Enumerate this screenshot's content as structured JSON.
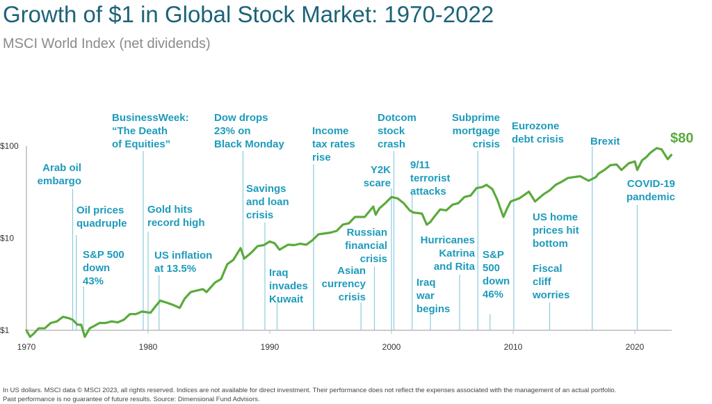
{
  "title": "Growth of $1 in Global Stock Market: 1970-2022",
  "subtitle": "MSCI World Index (net dividends)",
  "footer": {
    "line1": "In US dollars. MSCI data © MSCI 2023, all rights reserved. Indices are not available for direct investment. Their performance does not reflect the expenses associated with the management of an actual portfolio.",
    "line2": "Past performance is no guarantee of future results. Source: Dimensional Fund Advisors."
  },
  "chart_data": {
    "type": "line",
    "title": "Growth of $1 in Global Stock Market: 1970-2022",
    "yscale": "log",
    "xlim": [
      1970,
      2023
    ],
    "ylim": [
      1,
      100
    ],
    "x_ticks": [
      "1970",
      "1980",
      "1990",
      "2000",
      "2010",
      "2020"
    ],
    "y_ticks": [
      "$1",
      "$10",
      "$100"
    ],
    "grid": false,
    "line_color": "#5aaa3c",
    "annotation_color": "#1d9bbb",
    "end_value_label": "$80",
    "series": [
      {
        "x": [
          1970,
          1970.3,
          1970.6,
          1971,
          1971.5,
          1972,
          1972.5,
          1973,
          1973.5,
          1973.8,
          1974.2,
          1974.5,
          1974.8,
          1975.2,
          1975.6,
          1976,
          1976.5,
          1977,
          1977.5,
          1978,
          1978.5,
          1979,
          1979.5,
          1980.2,
          1980.5,
          1981,
          1981.5,
          1982,
          1982.6,
          1983,
          1983.5,
          1984,
          1984.5,
          1984.8,
          1985.5,
          1986,
          1986.5,
          1987,
          1987.6,
          1987.9,
          1988.5,
          1989,
          1989.5,
          1990,
          1990.4,
          1990.8,
          1991.5,
          1992,
          1992.5,
          1993,
          1993.5,
          1994,
          1995,
          1995.5,
          1996,
          1996.5,
          1997,
          1997.8,
          1998.5,
          1998.7,
          1999,
          1999.5,
          2000,
          2000.5,
          2001,
          2001.5,
          2001.8,
          2002.5,
          2002.9,
          2003.2,
          2003.5,
          2004,
          2004.5,
          2005,
          2005.5,
          2006,
          2006.5,
          2007,
          2007.5,
          2007.8,
          2008.3,
          2008.7,
          2009.2,
          2009.5,
          2009.8,
          2010.5,
          2011,
          2011.3,
          2011.8,
          2012.5,
          2013,
          2013.5,
          2014,
          2014.5,
          2015,
          2015.5,
          2016.2,
          2016.8,
          2017,
          2017.5,
          2018,
          2018.5,
          2018.9,
          2019.5,
          2020,
          2020.2,
          2020.6,
          2020.9,
          2021.3,
          2021.8,
          2022.2,
          2022.7,
          2023
        ],
        "y": [
          1.0,
          0.85,
          0.92,
          1.05,
          1.05,
          1.2,
          1.25,
          1.4,
          1.35,
          1.3,
          1.15,
          1.15,
          0.85,
          1.05,
          1.12,
          1.2,
          1.2,
          1.25,
          1.22,
          1.3,
          1.5,
          1.5,
          1.6,
          1.55,
          1.75,
          2.1,
          2.0,
          1.9,
          1.75,
          2.2,
          2.6,
          2.7,
          2.8,
          2.6,
          3.3,
          3.6,
          5.2,
          5.8,
          7.8,
          6.0,
          7.0,
          8.2,
          8.4,
          9.2,
          8.8,
          7.5,
          8.5,
          8.4,
          8.7,
          8.5,
          9.5,
          11,
          11.5,
          12,
          14,
          14.5,
          17,
          17,
          22,
          18,
          21,
          24,
          28,
          27,
          24,
          20,
          19,
          18.5,
          14,
          15,
          17,
          20.5,
          20,
          23,
          24,
          28,
          29,
          35,
          36,
          38,
          34,
          26,
          17,
          21,
          25,
          27,
          30,
          32,
          25,
          30,
          33,
          38,
          41,
          45,
          46,
          47,
          42,
          46,
          50,
          55,
          62,
          63,
          55,
          65,
          68,
          55,
          70,
          75,
          85,
          95,
          92,
          72,
          80
        ]
      }
    ],
    "annotations": [
      {
        "text": "Arab oil\nembargo",
        "year": 1973.8
      },
      {
        "text": "Oil prices\nquadruple",
        "year": 1974.1
      },
      {
        "text": "S&P 500\ndown\n43%",
        "year": 1974.7
      },
      {
        "text": "BusinessWeek:\n“The Death\nof Equities”",
        "year": 1979.6
      },
      {
        "text": "Gold hits\nrecord high",
        "year": 1980.0
      },
      {
        "text": "US inflation\nat 13.5%",
        "year": 1980.9
      },
      {
        "text": "Dow drops\n23% on\nBlack Monday",
        "year": 1987.8
      },
      {
        "text": "Savings\nand loan\ncrisis",
        "year": 1989.6
      },
      {
        "text": "Iraq\ninvades\nKuwait",
        "year": 1990.6
      },
      {
        "text": "Income\ntax rates\nrise",
        "year": 1993.6
      },
      {
        "text": "Russian\nfinancial\ncrisis",
        "year": 1998.6
      },
      {
        "text": "Asian\ncurrency\ncrisis",
        "year": 1997.5
      },
      {
        "text": "Y2K\nscare",
        "year": 2000.0
      },
      {
        "text": "Dotcom\nstock\ncrash",
        "year": 2000.2
      },
      {
        "text": "9/11\nterrorist\nattacks",
        "year": 2001.7
      },
      {
        "text": "Iraq\nwar\nbegins",
        "year": 2003.2
      },
      {
        "text": "Hurricanes\nKatrina\nand Rita",
        "year": 2005.6
      },
      {
        "text": "Subprime\nmortgage\ncrisis",
        "year": 2007.1
      },
      {
        "text": "S&P\n500\ndown\n46%",
        "year": 2008.1
      },
      {
        "text": "Eurozone\ndebt crisis",
        "year": 2010.05
      },
      {
        "text": "US home\nprices hit\nbottom",
        "year": null
      },
      {
        "text": "Fiscal\ncliff\nworries",
        "year": 2013.0
      },
      {
        "text": "Brexit",
        "year": 2016.5
      },
      {
        "text": "COVID-19\npandemic",
        "year": 2020.2
      }
    ]
  }
}
